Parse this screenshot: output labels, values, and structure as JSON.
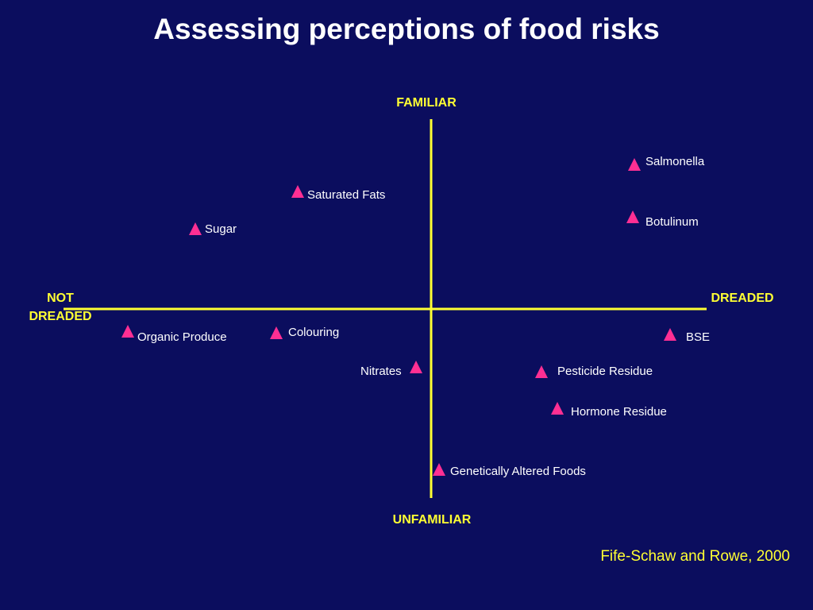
{
  "title": "Assessing perceptions of food risks",
  "axes": {
    "top": "FAMILIAR",
    "bottom": "UNFAMILIAR",
    "left_line1": "NOT",
    "left_line2": "DREADED",
    "right": "DREADED"
  },
  "citation": "Fife-Schaw and Rowe, 2000",
  "colors": {
    "background": "#0b0d5e",
    "axis": "#ffff33",
    "marker": "#ff2f93",
    "text": "#ffffff"
  },
  "marker_icon": "triangle-marker",
  "items": [
    {
      "id": "salmonella",
      "label": "Salmonella"
    },
    {
      "id": "saturated-fats",
      "label": "Saturated Fats"
    },
    {
      "id": "botulinum",
      "label": "Botulinum"
    },
    {
      "id": "sugar",
      "label": "Sugar"
    },
    {
      "id": "organic-produce",
      "label": "Organic Produce"
    },
    {
      "id": "colouring",
      "label": "Colouring"
    },
    {
      "id": "bse",
      "label": "BSE"
    },
    {
      "id": "nitrates",
      "label": "Nitrates"
    },
    {
      "id": "pesticide-residue",
      "label": "Pesticide Residue"
    },
    {
      "id": "hormone-residue",
      "label": "Hormone Residue"
    },
    {
      "id": "genetically-altered-foods",
      "label": "Genetically Altered Foods"
    }
  ]
}
